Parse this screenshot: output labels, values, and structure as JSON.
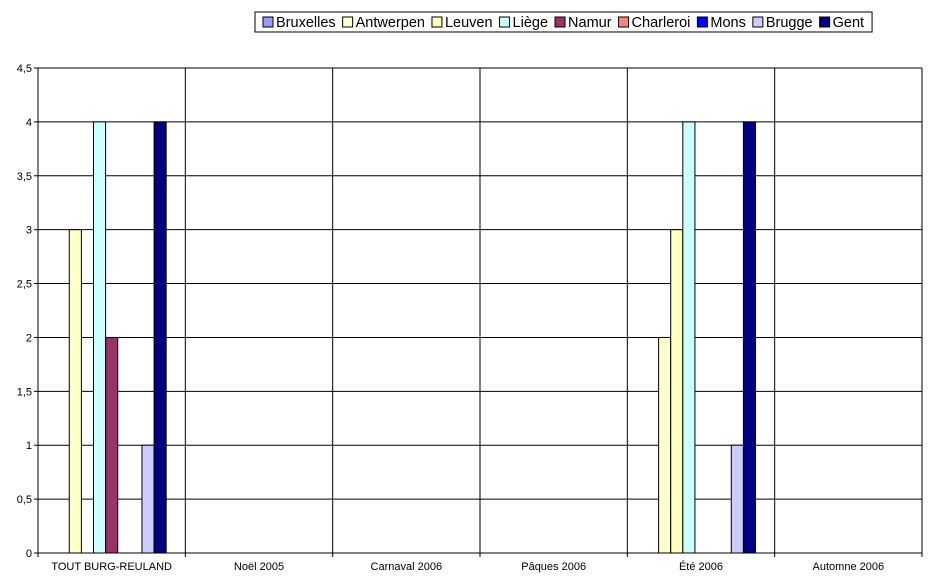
{
  "chart_data": {
    "type": "bar",
    "title": "",
    "xlabel": "",
    "ylabel": "",
    "ylim": [
      0,
      4.5
    ],
    "y_ticks": [
      "0",
      "0,5",
      "1",
      "1,5",
      "2",
      "2,5",
      "3",
      "3,5",
      "4",
      "4,5"
    ],
    "grid": true,
    "legend_position": "top",
    "categories": [
      "TOUT BURG-REULAND",
      "Noël 2005",
      "Carnaval 2006",
      "Pâques 2006",
      "Été 2006",
      "Automne 2006"
    ],
    "series": [
      {
        "name": "Bruxelles",
        "color": "#9999ff",
        "values": [
          0,
          0,
          0,
          0,
          0,
          0
        ]
      },
      {
        "name": "Antwerpen",
        "color": "#ffffcc",
        "values": [
          0,
          0,
          0,
          0,
          0,
          0
        ]
      },
      {
        "name": "Leuven",
        "color": "#ffffc0",
        "values": [
          0,
          0,
          0,
          0,
          0,
          0
        ]
      },
      {
        "name": "Liège",
        "color": "#ccffff",
        "values": [
          0,
          0,
          0,
          0,
          0,
          0
        ]
      },
      {
        "name": "Namur",
        "color": "#993366",
        "values": [
          2,
          0,
          0,
          0,
          0,
          0
        ]
      },
      {
        "name": "Charleroi",
        "color": "#ff8080",
        "values": [
          0,
          0,
          0,
          0,
          0,
          0
        ]
      },
      {
        "name": "Mons",
        "color": "#0000ff",
        "values": [
          0,
          0,
          0,
          0,
          0,
          0
        ]
      },
      {
        "name": "Brugge",
        "color": "#ccccff",
        "values": [
          0,
          0,
          0,
          0,
          0,
          0
        ]
      },
      {
        "name": "Gent",
        "color": "#000080",
        "values": [
          0,
          0,
          0,
          0,
          0,
          0
        ]
      }
    ],
    "series_overrides": {
      "Antwerpen": [
        3,
        0,
        0,
        0,
        2,
        0
      ],
      "Leuven": [
        0,
        0,
        0,
        0,
        3,
        0
      ],
      "Liège": [
        4,
        0,
        0,
        0,
        4,
        0
      ],
      "Brugge": [
        1,
        0,
        0,
        0,
        1,
        0
      ],
      "Gent": [
        4,
        0,
        0,
        0,
        4,
        0
      ]
    }
  }
}
